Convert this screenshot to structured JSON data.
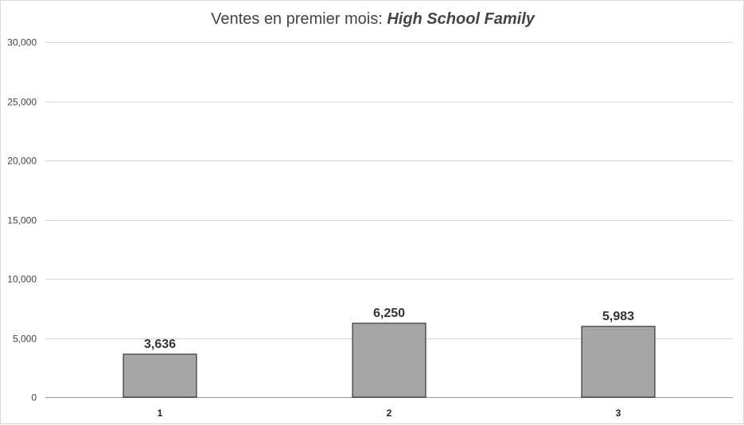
{
  "chart_data": {
    "type": "bar",
    "title": "Ventes en premier mois:",
    "title_emphasis": "High School Family",
    "xlabel": "",
    "ylabel": "",
    "categories": [
      "1",
      "2",
      "3"
    ],
    "values": [
      3636,
      6250,
      5983
    ],
    "data_labels": [
      "3,636",
      "6,250",
      "5,983"
    ],
    "ylim": [
      0,
      30000
    ],
    "yticks": [
      0,
      5000,
      10000,
      15000,
      20000,
      25000,
      30000
    ],
    "ytick_labels": [
      "0",
      "5,000",
      "10,000",
      "15,000",
      "20,000",
      "25,000",
      "30,000"
    ],
    "grid": true,
    "legend": "none",
    "colors": {
      "bar": "#a6a6a6",
      "bar_stroke": "#1a1a1a",
      "grid": "#d9d9d9",
      "axis": "#999999"
    }
  }
}
